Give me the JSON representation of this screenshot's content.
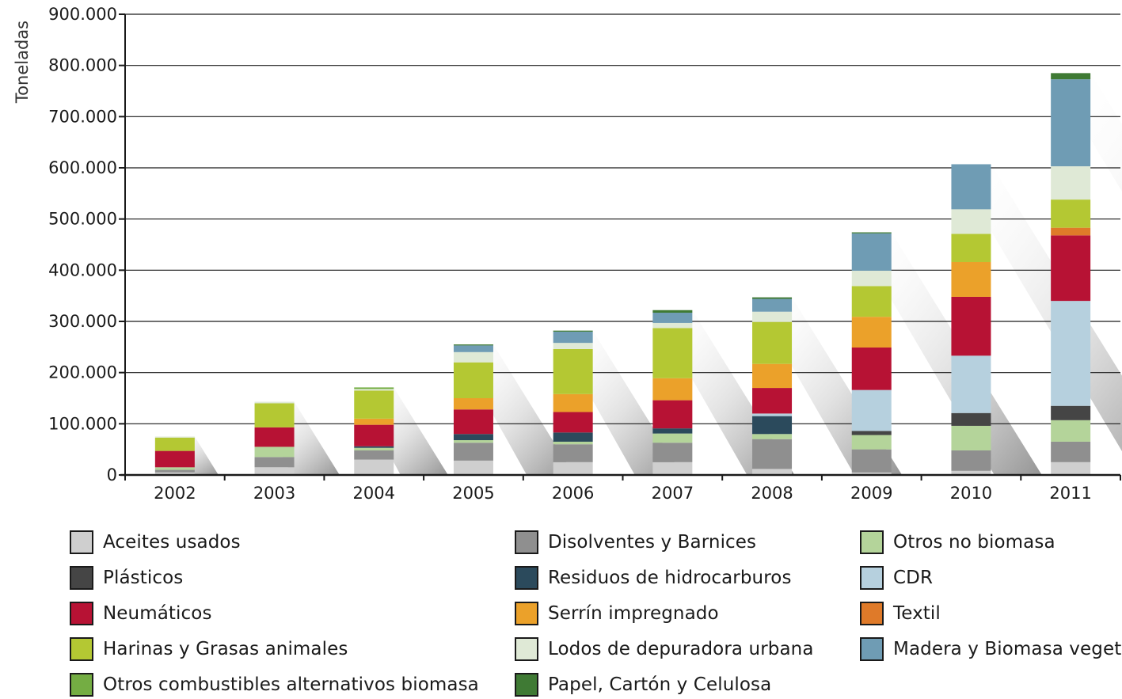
{
  "chart_data": {
    "type": "bar",
    "stacked": true,
    "title": "",
    "xlabel": "",
    "ylabel": "Toneladas",
    "ylim": [
      0,
      900000
    ],
    "y_ticks": [
      0,
      100000,
      200000,
      300000,
      400000,
      500000,
      600000,
      700000,
      800000,
      900000
    ],
    "y_tick_labels": [
      "0",
      "100.000",
      "200.000",
      "300.000",
      "400.000",
      "500.000",
      "600.000",
      "700.000",
      "800.000",
      "900.000"
    ],
    "categories": [
      "2002",
      "2003",
      "2004",
      "2005",
      "2006",
      "2007",
      "2008",
      "2009",
      "2010",
      "2011"
    ],
    "grid": true,
    "legend_position": "bottom",
    "series": [
      {
        "name": "Aceites usados",
        "color": "#cfcfcf",
        "values": [
          5000,
          15000,
          30000,
          28000,
          25000,
          25000,
          12000,
          5000,
          8000,
          25000
        ]
      },
      {
        "name": "Disolventes y Barnices",
        "color": "#8f8f8f",
        "values": [
          5000,
          20000,
          18000,
          35000,
          35000,
          38000,
          58000,
          45000,
          40000,
          40000
        ]
      },
      {
        "name": "Otros no biomasa",
        "color": "#b4d49a",
        "values": [
          5000,
          20000,
          5000,
          5000,
          5000,
          18000,
          10000,
          28000,
          48000,
          42000
        ]
      },
      {
        "name": "Plásticos",
        "color": "#454545",
        "values": [
          0,
          0,
          0,
          0,
          0,
          0,
          0,
          8000,
          25000,
          28000
        ]
      },
      {
        "name": "Residuos de hidrocarburos",
        "color": "#2b4a5c",
        "values": [
          0,
          0,
          3000,
          12000,
          18000,
          10000,
          35000,
          0,
          0,
          0
        ]
      },
      {
        "name": "CDR",
        "color": "#b6d0de",
        "values": [
          0,
          0,
          0,
          0,
          0,
          0,
          5000,
          80000,
          112000,
          205000
        ]
      },
      {
        "name": "Neumáticos",
        "color": "#b71234",
        "values": [
          32000,
          38000,
          42000,
          48000,
          40000,
          55000,
          50000,
          83000,
          115000,
          128000
        ]
      },
      {
        "name": "Serrín impregnado",
        "color": "#eba12a",
        "values": [
          0,
          0,
          12000,
          22000,
          35000,
          43000,
          47000,
          60000,
          68000,
          0
        ]
      },
      {
        "name": "Textil",
        "color": "#df7a29",
        "values": [
          0,
          0,
          0,
          0,
          0,
          0,
          0,
          0,
          0,
          15000
        ]
      },
      {
        "name": "Harinas y Grasas animales",
        "color": "#b4c833",
        "values": [
          26000,
          47000,
          55000,
          70000,
          88000,
          98000,
          82000,
          60000,
          55000,
          55000
        ]
      },
      {
        "name": "Lodos de depuradora urbana",
        "color": "#dfe9d6",
        "values": [
          2000,
          3000,
          3000,
          20000,
          12000,
          10000,
          20000,
          30000,
          48000,
          65000
        ]
      },
      {
        "name": "Madera y Biomasa vegetal",
        "color": "#6f9cb4",
        "values": [
          0,
          0,
          0,
          13000,
          22000,
          20000,
          25000,
          73000,
          88000,
          170000
        ]
      },
      {
        "name": "Otros combustibles alternativos biomasa",
        "color": "#74ad43",
        "values": [
          0,
          0,
          3000,
          0,
          0,
          0,
          0,
          0,
          0,
          0
        ]
      },
      {
        "name": "Papel, Cartón y Celulosa",
        "color": "#3f7a34",
        "values": [
          0,
          0,
          0,
          2000,
          2000,
          5000,
          3000,
          2000,
          0,
          12000
        ]
      }
    ]
  },
  "legend": [
    {
      "label": "Aceites usados",
      "color": "#cfcfcf"
    },
    {
      "label": "Plásticos",
      "color": "#454545"
    },
    {
      "label": "Neumáticos",
      "color": "#b71234"
    },
    {
      "label": "Harinas y Grasas animales",
      "color": "#b4c833"
    },
    {
      "label": "Otros combustibles alternativos biomasa",
      "color": "#74ad43"
    },
    {
      "label": "Disolventes y Barnices",
      "color": "#8f8f8f"
    },
    {
      "label": "Residuos de hidrocarburos",
      "color": "#2b4a5c"
    },
    {
      "label": "Serrín impregnado",
      "color": "#eba12a"
    },
    {
      "label": "Lodos de depuradora urbana",
      "color": "#dfe9d6"
    },
    {
      "label": "Papel, Cartón y Celulosa",
      "color": "#3f7a34"
    },
    {
      "label": "Otros no biomasa",
      "color": "#b4d49a"
    },
    {
      "label": "CDR",
      "color": "#b6d0de"
    },
    {
      "label": "Textil",
      "color": "#df7a29"
    },
    {
      "label": "Madera y Biomasa vegetal",
      "color": "#6f9cb4"
    }
  ]
}
